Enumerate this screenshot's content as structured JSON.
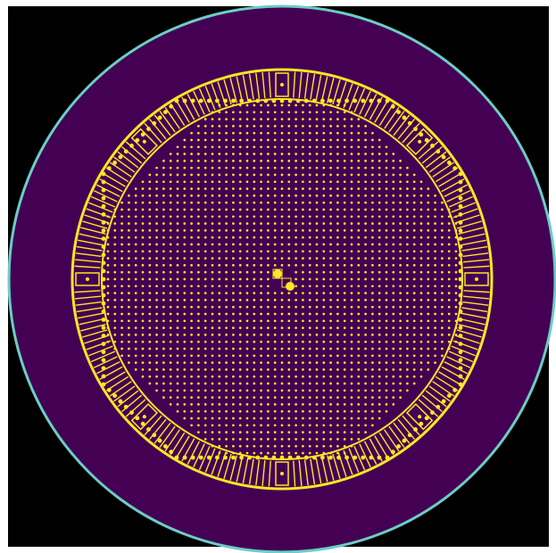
{
  "figure": {
    "description_type": "reactor-core cross-section (top view)",
    "colors": {
      "page_background": "#ffffff",
      "field_background": "#000000",
      "vessel_fill": "#440154",
      "vessel_outline": "#6ccdc5",
      "structure": "#fde725"
    },
    "components": [
      "outer-vessel",
      "core-barrel-ring",
      "instrument-lattice",
      "peripheral-slots",
      "central-markers"
    ]
  }
}
